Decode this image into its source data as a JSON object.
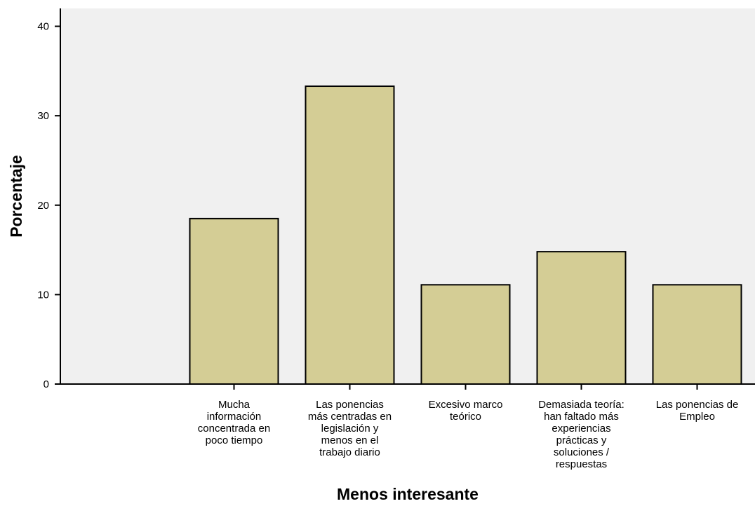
{
  "chart_data": {
    "type": "bar",
    "title": "",
    "xlabel": "Menos interesante",
    "ylabel": "Porcentaje",
    "ylim": [
      0,
      42
    ],
    "yticks": [
      0,
      10,
      20,
      30,
      40
    ],
    "grid": false,
    "legend": "none",
    "categories": [
      "",
      "Mucha información concentrada en poco tiempo",
      "Las ponencias más centradas en legislación y menos en el trabajo diario",
      "Excesivo marco teórico",
      "Demasiada teoría: han faltado más experiencias prácticas y soluciones / respuestas",
      "Las ponencias de Empleo"
    ],
    "category_lines": [
      [],
      [
        "Mucha",
        "información",
        "concentrada en",
        "poco tiempo"
      ],
      [
        "Las ponencias",
        "más centradas en",
        "legislación y",
        "menos en el",
        "trabajo diario"
      ],
      [
        "Excesivo marco",
        "teórico"
      ],
      [
        "Demasiada teoría:",
        "han faltado más",
        "experiencias",
        "prácticas y",
        "soluciones /",
        "respuestas"
      ],
      [
        "Las ponencias de",
        "Empleo"
      ]
    ],
    "values": [
      null,
      18.5,
      33.3,
      11.1,
      14.8,
      11.1
    ],
    "colors": {
      "bar_fill": "#d4cd95",
      "bar_stroke": "#000000",
      "plot_background": "#f0f0f0",
      "axis": "#000000"
    }
  }
}
